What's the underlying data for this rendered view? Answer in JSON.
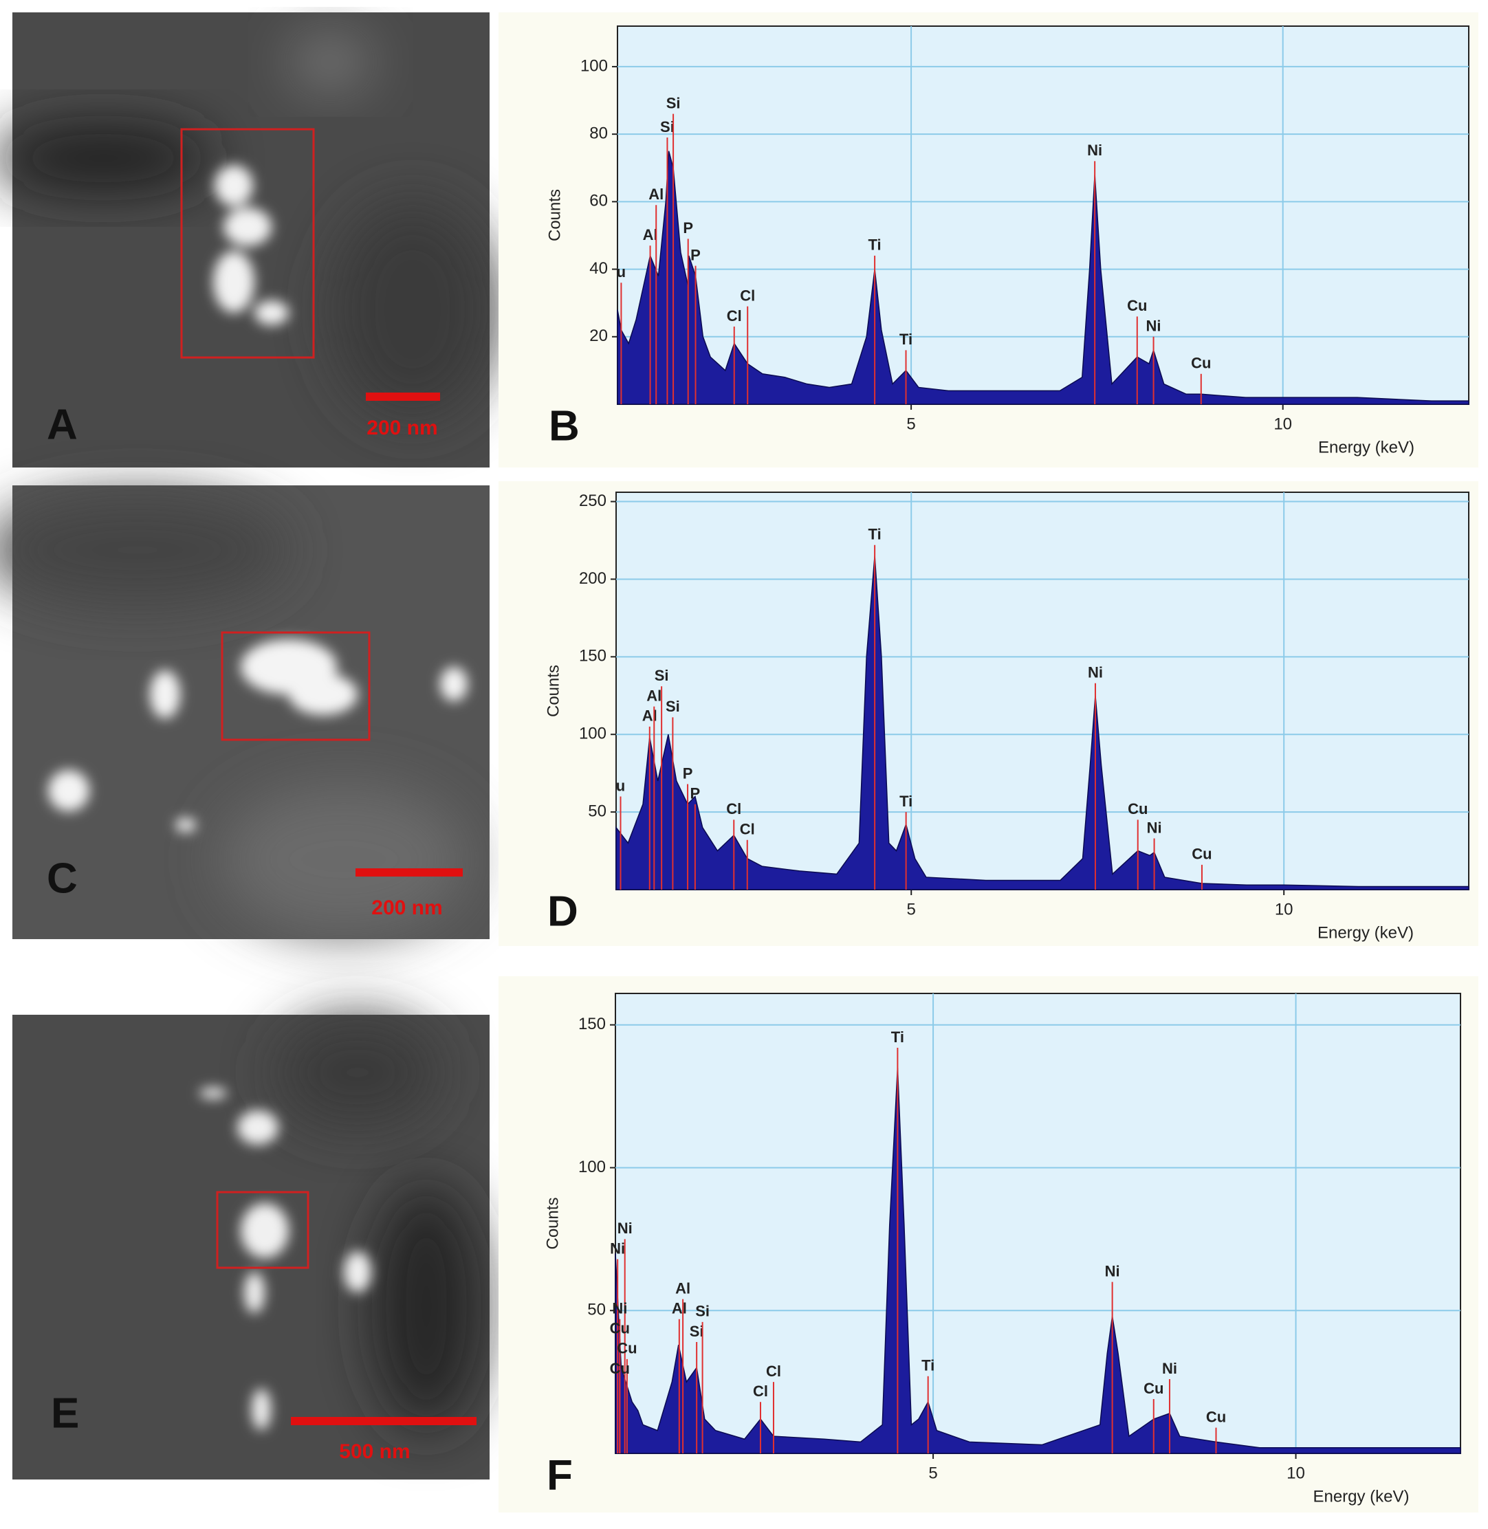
{
  "images": [
    {
      "label": "A",
      "scale_bar": "200 nm"
    },
    {
      "label": "C",
      "scale_bar": "200 nm"
    },
    {
      "label": "E",
      "scale_bar": "500 nm"
    }
  ],
  "chart_data": [
    {
      "type": "area",
      "panel": "B",
      "ylabel": "Counts",
      "xlabel": "Energy (keV)",
      "color": "#1c1c9c",
      "grid": true,
      "xlim": [
        1.05,
        12.5
      ],
      "xticks": [
        5,
        10
      ],
      "ylim": [
        0,
        112
      ],
      "yticks": [
        20,
        40,
        60,
        80,
        100
      ],
      "x": [
        1.05,
        1.1,
        1.2,
        1.3,
        1.4,
        1.49,
        1.6,
        1.7,
        1.74,
        1.8,
        1.9,
        2.0,
        2.01,
        2.1,
        2.2,
        2.3,
        2.4,
        2.5,
        2.62,
        2.8,
        3.0,
        3.3,
        3.6,
        3.9,
        4.2,
        4.4,
        4.51,
        4.6,
        4.75,
        4.93,
        5.1,
        5.5,
        6.0,
        6.5,
        7.0,
        7.3,
        7.4,
        7.47,
        7.55,
        7.7,
        8.04,
        8.2,
        8.26,
        8.4,
        8.7,
        8.9,
        9.5,
        10,
        11,
        12,
        12.5
      ],
      "values": [
        28,
        22,
        18,
        25,
        35,
        44,
        38,
        60,
        75,
        70,
        45,
        35,
        44,
        38,
        20,
        14,
        12,
        10,
        18,
        12,
        9,
        8,
        6,
        5,
        6,
        20,
        40,
        22,
        6,
        10,
        5,
        4,
        4,
        4,
        4,
        8,
        40,
        68,
        40,
        6,
        14,
        12,
        16,
        6,
        3,
        3,
        2,
        2,
        2,
        1,
        1
      ],
      "annotations": [
        {
          "text": "u",
          "x": 1.1,
          "y": 36
        },
        {
          "text": "Al",
          "x": 1.49,
          "y": 47
        },
        {
          "text": "Al",
          "x": 1.57,
          "y": 59
        },
        {
          "text": "Si",
          "x": 1.72,
          "y": 79
        },
        {
          "text": "Si",
          "x": 1.8,
          "y": 86
        },
        {
          "text": "P",
          "x": 2.0,
          "y": 49
        },
        {
          "text": "P",
          "x": 2.1,
          "y": 41
        },
        {
          "text": "Cl",
          "x": 2.62,
          "y": 23
        },
        {
          "text": "Cl",
          "x": 2.8,
          "y": 29
        },
        {
          "text": "Ti",
          "x": 4.51,
          "y": 44
        },
        {
          "text": "Ti",
          "x": 4.93,
          "y": 16
        },
        {
          "text": "Ni",
          "x": 7.47,
          "y": 72
        },
        {
          "text": "Cu",
          "x": 8.04,
          "y": 26
        },
        {
          "text": "Ni",
          "x": 8.26,
          "y": 20
        },
        {
          "text": "Cu",
          "x": 8.9,
          "y": 9
        }
      ]
    },
    {
      "type": "area",
      "panel": "D",
      "ylabel": "Counts",
      "xlabel": "Energy (keV)",
      "color": "#1c1c9c",
      "grid": true,
      "xlim": [
        1.04,
        12.48
      ],
      "xticks": [
        5,
        10
      ],
      "ylim": [
        0,
        256
      ],
      "yticks": [
        50,
        100,
        150,
        200,
        250
      ],
      "x": [
        1.04,
        1.2,
        1.4,
        1.49,
        1.6,
        1.74,
        1.85,
        2.0,
        2.1,
        2.2,
        2.4,
        2.62,
        2.8,
        3.0,
        3.5,
        4.0,
        4.3,
        4.4,
        4.51,
        4.6,
        4.7,
        4.8,
        4.93,
        5.05,
        5.2,
        6,
        7,
        7.3,
        7.4,
        7.47,
        7.55,
        7.7,
        8.04,
        8.2,
        8.26,
        8.4,
        8.9,
        9.5,
        10,
        11,
        12.48
      ],
      "values": [
        40,
        30,
        55,
        98,
        70,
        100,
        70,
        55,
        60,
        40,
        25,
        35,
        20,
        15,
        12,
        10,
        30,
        150,
        215,
        150,
        30,
        25,
        42,
        20,
        8,
        6,
        6,
        20,
        80,
        125,
        80,
        10,
        25,
        22,
        24,
        8,
        4,
        3,
        3,
        2,
        2
      ],
      "annotations": [
        {
          "text": "u",
          "x": 1.1,
          "y": 60
        },
        {
          "text": "Al",
          "x": 1.49,
          "y": 105
        },
        {
          "text": "Al",
          "x": 1.55,
          "y": 118
        },
        {
          "text": "Si",
          "x": 1.65,
          "y": 131
        },
        {
          "text": "Si",
          "x": 1.8,
          "y": 111
        },
        {
          "text": "P",
          "x": 2.0,
          "y": 68
        },
        {
          "text": "P",
          "x": 2.1,
          "y": 55
        },
        {
          "text": "Cl",
          "x": 2.62,
          "y": 45
        },
        {
          "text": "Cl",
          "x": 2.8,
          "y": 32
        },
        {
          "text": "Ti",
          "x": 4.51,
          "y": 222
        },
        {
          "text": "Ti",
          "x": 4.93,
          "y": 50
        },
        {
          "text": "Ni",
          "x": 7.47,
          "y": 133
        },
        {
          "text": "Cu",
          "x": 8.04,
          "y": 45
        },
        {
          "text": "Ni",
          "x": 8.26,
          "y": 33
        },
        {
          "text": "Cu",
          "x": 8.9,
          "y": 16
        }
      ]
    },
    {
      "type": "area",
      "panel": "F",
      "ylabel": "Counts",
      "xlabel": "Energy (keV)",
      "color": "#1c1c9c",
      "grid": true,
      "xlim": [
        0.62,
        12.27
      ],
      "xticks": [
        5,
        10
      ],
      "ylim": [
        0,
        161
      ],
      "yticks": [
        50,
        100,
        150
      ],
      "x": [
        0.62,
        0.7,
        0.85,
        0.93,
        1.0,
        1.2,
        1.4,
        1.49,
        1.6,
        1.74,
        1.85,
        2.0,
        2.4,
        2.62,
        2.8,
        3.5,
        4.0,
        4.3,
        4.4,
        4.51,
        4.6,
        4.7,
        4.8,
        4.93,
        5.05,
        5.5,
        6.5,
        7.3,
        7.4,
        7.47,
        7.55,
        7.7,
        8.04,
        8.26,
        8.4,
        8.9,
        9.5,
        10,
        11,
        12.27
      ],
      "values": [
        70,
        30,
        18,
        15,
        10,
        8,
        25,
        38,
        25,
        30,
        12,
        8,
        5,
        12,
        6,
        5,
        4,
        10,
        80,
        135,
        80,
        10,
        12,
        18,
        8,
        4,
        3,
        10,
        35,
        48,
        35,
        6,
        12,
        14,
        6,
        4,
        2,
        2,
        2,
        2
      ],
      "annotations": [
        {
          "text": "Ni",
          "x": 0.65,
          "y": 68
        },
        {
          "text": "Ni",
          "x": 0.75,
          "y": 75
        },
        {
          "text": "Ni",
          "x": 0.68,
          "y": 47
        },
        {
          "text": "Cu",
          "x": 0.68,
          "y": 40
        },
        {
          "text": "Cu",
          "x": 0.78,
          "y": 33
        },
        {
          "text": "Cu",
          "x": 0.68,
          "y": 26
        },
        {
          "text": "Al",
          "x": 1.5,
          "y": 47
        },
        {
          "text": "Al",
          "x": 1.55,
          "y": 54
        },
        {
          "text": "Si",
          "x": 1.74,
          "y": 39
        },
        {
          "text": "Si",
          "x": 1.82,
          "y": 46
        },
        {
          "text": "Cl",
          "x": 2.62,
          "y": 18
        },
        {
          "text": "Cl",
          "x": 2.8,
          "y": 25
        },
        {
          "text": "Ti",
          "x": 4.51,
          "y": 142
        },
        {
          "text": "Ti",
          "x": 4.93,
          "y": 27
        },
        {
          "text": "Ni",
          "x": 7.47,
          "y": 60
        },
        {
          "text": "Cu",
          "x": 8.04,
          "y": 19
        },
        {
          "text": "Ni",
          "x": 8.26,
          "y": 26
        },
        {
          "text": "Cu",
          "x": 8.9,
          "y": 9
        }
      ]
    }
  ]
}
